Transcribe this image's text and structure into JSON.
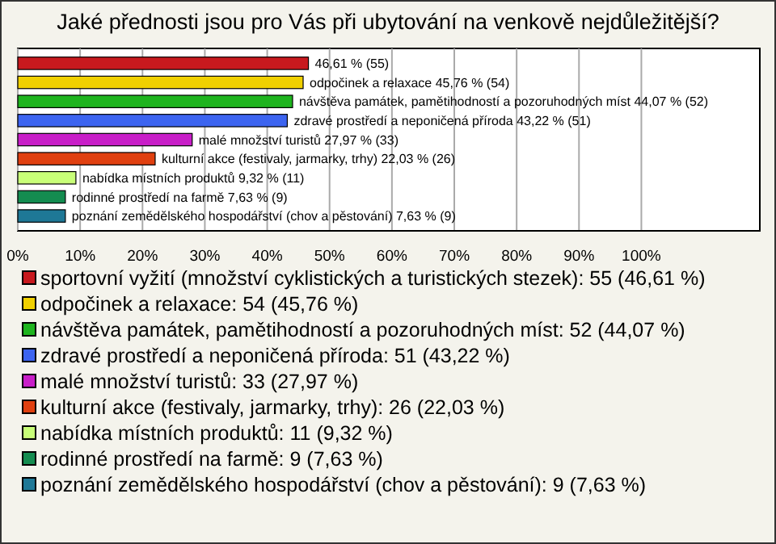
{
  "chart_data": {
    "type": "bar",
    "orientation": "horizontal",
    "title": "Jaké přednosti jsou pro Vás při ubytování na venkově nejdůležitější?",
    "categories": [
      null,
      null,
      null,
      null,
      null,
      null,
      null,
      null,
      null
    ],
    "series": [
      {
        "name": "sportovní vyžití (množství cyklistických a turistických stezek): 55 (46,61 %)",
        "color": "#c8191e",
        "values": [
          46.61,
          null,
          null,
          null,
          null,
          null,
          null,
          null,
          null
        ],
        "value_labels": [
          "46,61 % (55)",
          null,
          null,
          null,
          null,
          null,
          null,
          null,
          null
        ]
      },
      {
        "name": "odpočinek a relaxace: 54 (45,76 %)",
        "color": "#f0d000",
        "values": [
          null,
          45.76,
          null,
          null,
          null,
          null,
          null,
          null,
          null
        ],
        "value_labels": [
          null,
          "odpočinek a relaxace 45,76 % (54)",
          null,
          null,
          null,
          null,
          null,
          null,
          null
        ]
      },
      {
        "name": "návštěva památek, pamětihodností a pozoruhodných míst: 52 (44,07 %)",
        "color": "#1eb41e",
        "values": [
          null,
          null,
          44.07,
          null,
          null,
          null,
          null,
          null,
          null
        ],
        "value_labels": [
          null,
          null,
          "návštěva památek, pamětihodností a pozoruhodných míst 44,07 % (52)",
          null,
          null,
          null,
          null,
          null,
          null
        ]
      },
      {
        "name": "zdravé prostředí a neponičená příroda: 51 (43,22 %)",
        "color": "#3c64f0",
        "values": [
          null,
          null,
          null,
          43.22,
          null,
          null,
          null,
          null,
          null
        ],
        "value_labels": [
          null,
          null,
          null,
          "zdravé prostředí a neponičená příroda 43,22 % (51)",
          null,
          null,
          null,
          null,
          null
        ]
      },
      {
        "name": "malé množství turistů: 33 (27,97 %)",
        "color": "#c81ec8",
        "values": [
          null,
          null,
          null,
          null,
          27.97,
          null,
          null,
          null,
          null
        ],
        "value_labels": [
          null,
          null,
          null,
          null,
          "malé množství turistů 27,97 % (33)",
          null,
          null,
          null,
          null
        ]
      },
      {
        "name": "kulturní akce (festivaly, jarmarky, trhy): 26 (22,03 %)",
        "color": "#e04010",
        "values": [
          null,
          null,
          null,
          null,
          null,
          22.03,
          null,
          null,
          null
        ],
        "value_labels": [
          null,
          null,
          null,
          null,
          null,
          "kulturní akce (festivaly, jarmarky, trhy) 22,03 % (26)",
          null,
          null,
          null
        ]
      },
      {
        "name": "nabídka místních produktů: 11 (9,32 %)",
        "color": "#c8ff78",
        "values": [
          null,
          null,
          null,
          null,
          null,
          null,
          9.32,
          null,
          null
        ],
        "value_labels": [
          null,
          null,
          null,
          null,
          null,
          null,
          "nabídka místních produktů 9,32 % (11)",
          null,
          null
        ]
      },
      {
        "name": "rodinné prostředí na farmě: 9 (7,63 %)",
        "color": "#148c50",
        "values": [
          null,
          null,
          null,
          null,
          null,
          null,
          null,
          7.63,
          null
        ],
        "value_labels": [
          null,
          null,
          null,
          null,
          null,
          null,
          null,
          "rodinné prostředí na farmě 7,63 % (9)",
          null
        ]
      },
      {
        "name": "poznání zemědělského hospodářství (chov a pěstování): 9 (7,63 %)",
        "color": "#1e7896",
        "values": [
          null,
          null,
          null,
          null,
          null,
          null,
          null,
          null,
          7.63
        ],
        "value_labels": [
          null,
          null,
          null,
          null,
          null,
          null,
          null,
          null,
          "poznání zemědělského hospodářství (chov a pěstování) 7,63 % (9)"
        ]
      }
    ],
    "xlim": [
      0,
      119
    ],
    "xticks": [
      {
        "value": 0,
        "label": "0%"
      },
      {
        "value": 10,
        "label": "10%"
      },
      {
        "value": 20,
        "label": "20%"
      },
      {
        "value": 30,
        "label": "30%"
      },
      {
        "value": 40,
        "label": "40%"
      },
      {
        "value": 50,
        "label": "50%"
      },
      {
        "value": 60,
        "label": "60%"
      },
      {
        "value": 70,
        "label": "70%"
      },
      {
        "value": 80,
        "label": "80%"
      },
      {
        "value": 90,
        "label": "90%"
      },
      {
        "value": 100,
        "label": "100%"
      }
    ],
    "grid": "x",
    "legend": "bottom",
    "tick_labels": "x"
  }
}
